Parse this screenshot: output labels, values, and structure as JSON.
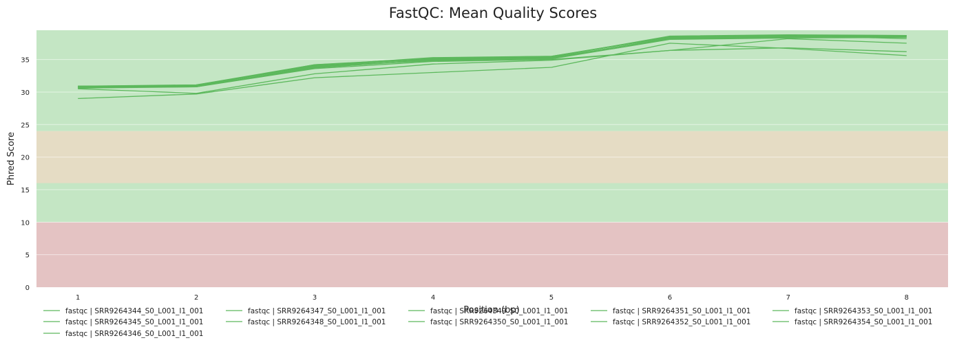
{
  "chart_data": {
    "type": "line",
    "title": "FastQC: Mean Quality Scores",
    "xlabel": "Position (bp)",
    "ylabel": "Phred Score",
    "x": [
      1,
      2,
      3,
      4,
      5,
      6,
      7,
      8
    ],
    "xlim": [
      0.65,
      8.35
    ],
    "ylim": [
      0,
      39.5
    ],
    "yticks": [
      0,
      5,
      10,
      15,
      20,
      25,
      30,
      35
    ],
    "grid": true,
    "legend_position": "bottom",
    "bands": [
      {
        "from": 0,
        "to": 10,
        "color": "#e4c3c3"
      },
      {
        "from": 10,
        "to": 16,
        "color": "#c4e6c4"
      },
      {
        "from": 16,
        "to": 24,
        "color": "#e5dcc4"
      },
      {
        "from": 24,
        "to": 39.5,
        "color": "#c4e6c4"
      }
    ],
    "line_color": "#5cb85c",
    "series": [
      {
        "name": "fastqc | SRR9264344_S0_L001_I1_001",
        "values": [
          30.5,
          29.8,
          32.8,
          34.3,
          34.9,
          36.4,
          36.8,
          36.2
        ]
      },
      {
        "name": "fastqc | SRR9264345_S0_L001_I1_001",
        "values": [
          29.0,
          29.7,
          32.2,
          33.0,
          33.8,
          37.5,
          36.7,
          35.6
        ]
      },
      {
        "name": "fastqc | SRR9264346_S0_L001_I1_001",
        "values": [
          30.6,
          30.8,
          33.6,
          34.7,
          35.0,
          36.4,
          38.2,
          37.5
        ]
      },
      {
        "name": "fastqc | SRR9264347_S0_L001_I1_001",
        "values": [
          30.9,
          31.1,
          34.2,
          35.0,
          35.4,
          38.5,
          38.7,
          38.6
        ]
      },
      {
        "name": "fastqc | SRR9264348_S0_L001_I1_001",
        "values": [
          30.8,
          31.0,
          34.0,
          34.8,
          35.2,
          38.3,
          38.5,
          38.4
        ]
      },
      {
        "name": "fastqc | SRR9264349_S0_L001_I1_001",
        "values": [
          30.7,
          30.9,
          33.8,
          34.9,
          35.3,
          38.2,
          38.4,
          38.7
        ]
      },
      {
        "name": "fastqc | SRR9264350_S0_L001_I1_001",
        "values": [
          30.9,
          31.0,
          34.1,
          35.3,
          35.5,
          38.4,
          38.6,
          38.5
        ]
      },
      {
        "name": "fastqc | SRR9264351_S0_L001_I1_001",
        "values": [
          30.8,
          31.1,
          34.0,
          35.1,
          35.4,
          38.6,
          38.8,
          38.7
        ]
      },
      {
        "name": "fastqc | SRR9264352_S0_L001_I1_001",
        "values": [
          30.6,
          30.9,
          33.7,
          35.0,
          35.2,
          38.3,
          38.5,
          38.6
        ]
      },
      {
        "name": "fastqc | SRR9264353_S0_L001_I1_001",
        "values": [
          30.9,
          31.0,
          34.2,
          35.2,
          35.5,
          38.5,
          38.7,
          38.2
        ]
      },
      {
        "name": "fastqc | SRR9264354_S0_L001_I1_001",
        "values": [
          30.7,
          30.8,
          33.9,
          34.9,
          35.1,
          38.1,
          38.3,
          38.4
        ]
      }
    ]
  }
}
